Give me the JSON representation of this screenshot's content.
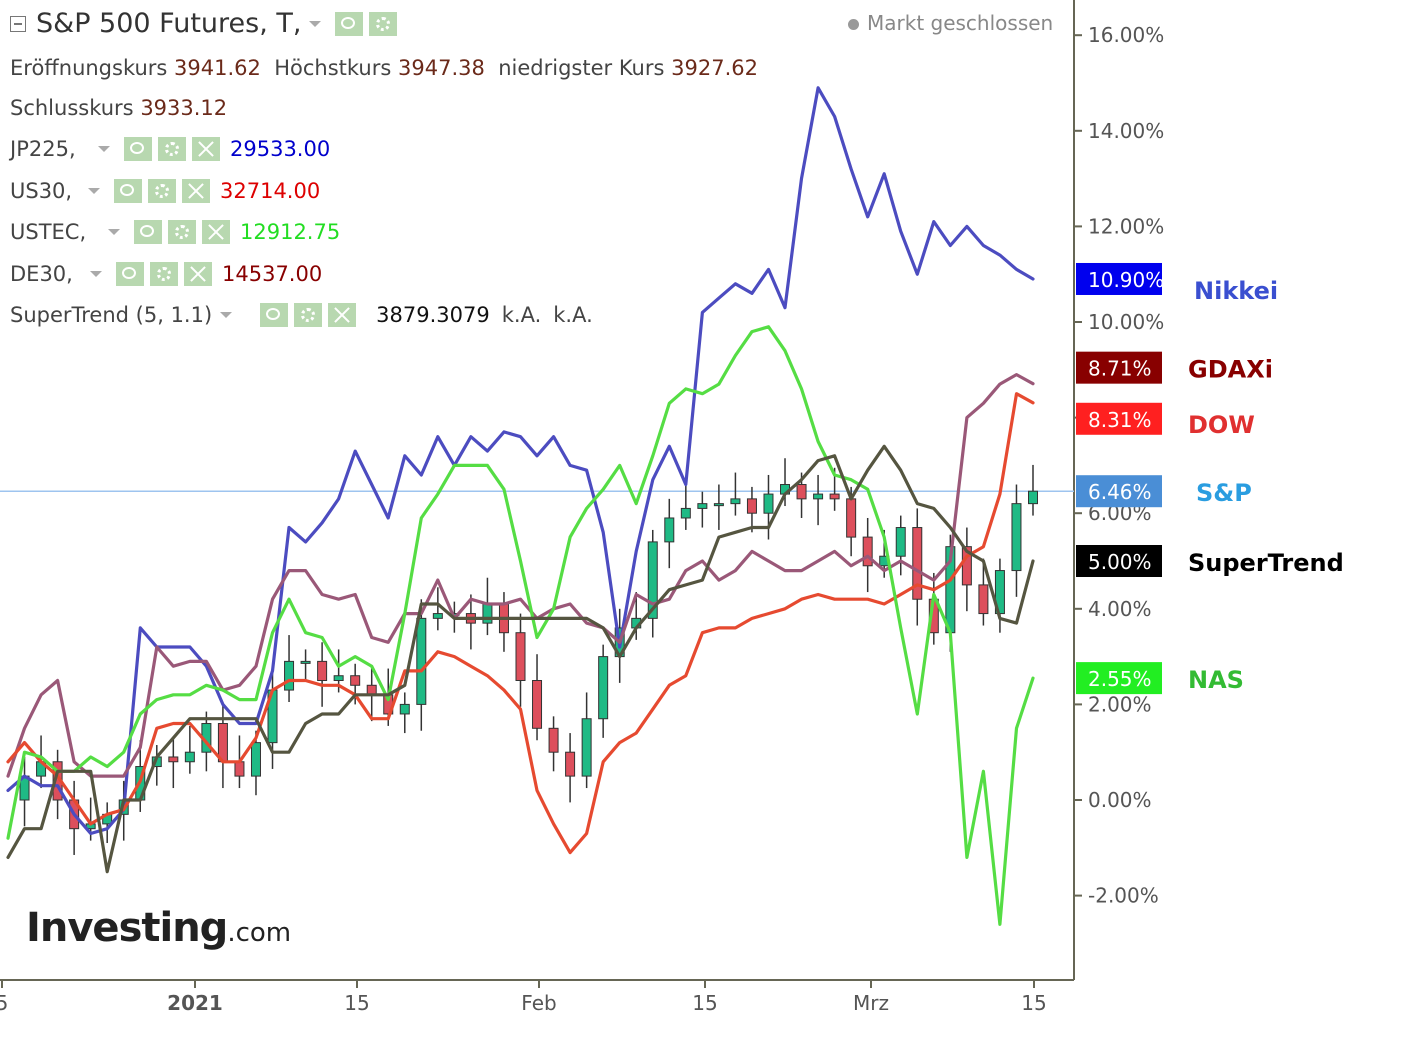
{
  "header": {
    "title": "S&P 500 Futures, T,",
    "market_status": "Markt geschlossen"
  },
  "ohlc": {
    "open_label": "Eröffnungskurs",
    "open_value": "3941.62",
    "high_label": "Höchstkurs",
    "high_value": "3947.38",
    "low_label": "niedrigster Kurs",
    "low_value": "3927.62",
    "close_label": "Schlusskurs",
    "close_value": "3933.12"
  },
  "overlays": [
    {
      "label": "JP225,",
      "value": "29533.00",
      "color": "#0000cc"
    },
    {
      "label": "US30,",
      "value": "32714.00",
      "color": "#dd0000"
    },
    {
      "label": "USTEC,",
      "value": "12912.75",
      "color": "#22dd22"
    },
    {
      "label": "DE30,",
      "value": "14537.00",
      "color": "#880000"
    }
  ],
  "indicator": {
    "label": "SuperTrend (5, 1.1)",
    "value": "3879.3079",
    "na1": "k.A.",
    "na2": "k.A."
  },
  "logo": {
    "big": "Investing",
    "small": ".com"
  },
  "colors": {
    "nikkei": "#4c4cc0",
    "gdaxi": "#9a5878",
    "dow": "#e64a30",
    "nas": "#55dd44",
    "supertrend": "#555540",
    "up_candle": "#1fba85",
    "down_candle": "#dd4f5c",
    "price_line": "#9ec4ef",
    "axis": "#666655"
  },
  "chart_data": {
    "type": "line",
    "x_ticks": [
      "5",
      "2021",
      "15",
      "Feb",
      "15",
      "Mrz",
      "15"
    ],
    "y_ticks": [
      "-2.00%",
      "0.00%",
      "2.00%",
      "4.00%",
      "6.00%",
      "8.00%",
      "10.00%",
      "12.00%",
      "14.00%",
      "16.00%"
    ],
    "ylim": [
      -3.6,
      16.5
    ],
    "n_points": 63,
    "series": [
      {
        "key": "nikkei",
        "name": "Nikkei",
        "final_label": "10.90%",
        "badge_color": "#0000ee",
        "name_color": "#3a4fd0",
        "values": [
          0.2,
          0.5,
          0.3,
          0.3,
          -0.3,
          -0.7,
          -0.6,
          -0.2,
          3.6,
          3.2,
          3.2,
          3.2,
          2.8,
          2.0,
          1.6,
          1.6,
          2.7,
          5.7,
          5.4,
          5.8,
          6.3,
          7.3,
          6.6,
          5.9,
          7.2,
          6.8,
          7.6,
          7.0,
          7.6,
          7.3,
          7.7,
          7.6,
          7.2,
          7.6,
          7.0,
          6.9,
          5.6,
          3.2,
          5.2,
          6.7,
          7.4,
          6.6,
          10.2,
          10.5,
          10.8,
          10.6,
          11.1,
          10.3,
          13.0,
          14.9,
          14.3,
          13.2,
          12.2,
          13.1,
          11.9,
          11.0,
          12.1,
          11.6,
          12.0,
          11.6,
          11.4,
          11.1,
          10.9
        ]
      },
      {
        "key": "gdaxi",
        "name": "GDAXi",
        "final_label": "8.71%",
        "badge_color": "#880000",
        "name_color": "#880000",
        "values": [
          0.5,
          1.5,
          2.2,
          2.5,
          0.8,
          0.5,
          0.5,
          0.5,
          1.1,
          3.2,
          2.8,
          2.9,
          2.9,
          2.3,
          2.4,
          2.8,
          4.2,
          4.8,
          4.8,
          4.3,
          4.2,
          4.3,
          3.4,
          3.3,
          3.9,
          3.9,
          4.6,
          3.8,
          4.2,
          4.1,
          4.1,
          4.2,
          3.8,
          4.0,
          4.1,
          3.7,
          3.6,
          3.3,
          4.3,
          4.1,
          4.2,
          4.8,
          5.0,
          4.6,
          4.8,
          5.2,
          5.0,
          4.8,
          4.8,
          5.0,
          5.2,
          4.9,
          5.1,
          4.8,
          5.0,
          4.8,
          4.6,
          5.0,
          8.0,
          8.3,
          8.7,
          8.9,
          8.71
        ]
      },
      {
        "key": "dow",
        "name": "DOW",
        "final_label": "8.31%",
        "badge_color": "#ff2020",
        "name_color": "#e03030",
        "values": [
          0.8,
          1.2,
          0.8,
          0.5,
          0.0,
          -0.5,
          -0.3,
          -0.2,
          0.4,
          1.5,
          1.6,
          1.6,
          1.2,
          0.8,
          0.8,
          1.3,
          2.3,
          2.5,
          2.5,
          2.4,
          2.4,
          2.2,
          1.7,
          1.7,
          2.7,
          2.7,
          3.1,
          3.0,
          2.8,
          2.6,
          2.3,
          1.9,
          0.2,
          -0.5,
          -1.1,
          -0.7,
          0.8,
          1.2,
          1.4,
          1.9,
          2.4,
          2.6,
          3.5,
          3.6,
          3.6,
          3.8,
          3.9,
          4.0,
          4.2,
          4.3,
          4.2,
          4.2,
          4.2,
          4.1,
          4.3,
          4.5,
          4.4,
          4.6,
          5.1,
          5.3,
          6.4,
          8.5,
          8.31
        ]
      },
      {
        "key": "nas",
        "name": "NAS",
        "final_label": "2.55%",
        "badge_color": "#22ee22",
        "name_color": "#33bb33",
        "values": [
          -0.8,
          1.0,
          0.9,
          0.6,
          0.6,
          0.9,
          0.7,
          1.0,
          1.8,
          2.1,
          2.2,
          2.2,
          2.4,
          2.3,
          2.1,
          2.1,
          3.5,
          4.2,
          3.5,
          3.4,
          2.8,
          3.0,
          2.8,
          2.1,
          3.9,
          5.9,
          6.4,
          7.0,
          7.0,
          7.0,
          6.5,
          5.0,
          3.4,
          4.0,
          5.5,
          6.1,
          6.5,
          7.0,
          6.2,
          7.2,
          8.3,
          8.6,
          8.5,
          8.7,
          9.3,
          9.8,
          9.9,
          9.4,
          8.6,
          7.5,
          6.8,
          6.7,
          6.5,
          5.5,
          3.6,
          1.8,
          4.3,
          3.5,
          -1.2,
          0.6,
          -2.6,
          1.5,
          2.55
        ]
      },
      {
        "key": "supertrend",
        "name": "SuperTrend",
        "final_label": "5.00%",
        "badge_color": "#000000",
        "name_color": "#000000",
        "values": [
          -1.2,
          -0.6,
          -0.6,
          0.6,
          0.6,
          0.6,
          -1.5,
          0.0,
          0.0,
          0.9,
          1.3,
          1.7,
          1.7,
          1.7,
          1.7,
          1.7,
          1.0,
          1.0,
          1.6,
          1.8,
          1.8,
          2.2,
          2.2,
          2.2,
          2.4,
          4.1,
          4.1,
          3.8,
          3.8,
          3.8,
          3.8,
          3.8,
          3.8,
          3.8,
          3.8,
          3.8,
          3.6,
          3.0,
          3.6,
          4.0,
          4.4,
          4.5,
          4.6,
          5.5,
          5.6,
          5.7,
          5.7,
          6.4,
          6.7,
          7.1,
          7.2,
          6.3,
          6.9,
          7.4,
          6.9,
          6.2,
          6.1,
          5.7,
          5.2,
          5.0,
          3.8,
          3.7,
          5.0
        ]
      },
      {
        "key": "sp",
        "name": "S&P",
        "final_label": "6.46%",
        "badge_color": "#4a8ed6",
        "name_color": "#2a9de0",
        "values": [
          0.0,
          0.5,
          0.8,
          0.0,
          -0.6,
          -0.5,
          -0.3,
          0.0,
          0.7,
          0.9,
          0.8,
          1.0,
          1.6,
          0.8,
          0.5,
          1.2,
          2.3,
          2.9,
          2.9,
          2.5,
          2.6,
          2.4,
          2.2,
          1.8,
          2.0,
          3.8,
          3.9,
          3.9,
          3.7,
          4.1,
          3.5,
          2.5,
          1.5,
          1.0,
          0.5,
          1.7,
          3.0,
          3.6,
          3.8,
          5.4,
          5.9,
          6.1,
          6.2,
          6.2,
          6.3,
          6.0,
          6.4,
          6.6,
          6.3,
          6.4,
          6.3,
          5.5,
          4.9,
          5.1,
          5.7,
          4.2,
          3.5,
          5.3,
          4.5,
          3.9,
          4.8,
          6.2,
          6.46
        ]
      }
    ]
  }
}
